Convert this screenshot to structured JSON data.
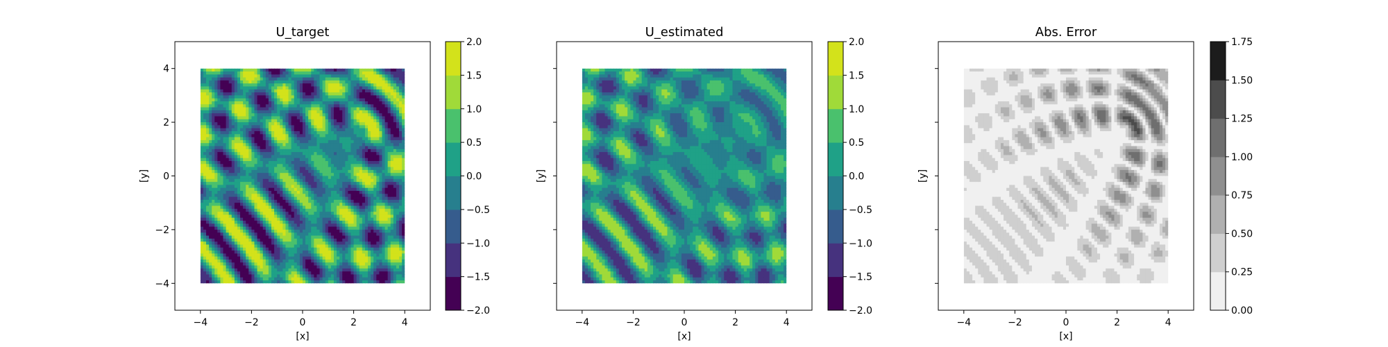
{
  "chart_data": [
    {
      "type": "heatmap",
      "title": "U_target",
      "xlabel": "[x]",
      "ylabel": "[y]",
      "xlim": [
        -5,
        5
      ],
      "ylim": [
        -5,
        5
      ],
      "data_extent": [
        -4,
        4
      ],
      "xticks": [
        -4,
        -2,
        0,
        2,
        4
      ],
      "yticks": [
        -4,
        -2,
        0,
        2,
        4
      ],
      "xtick_labels": [
        "−4",
        "−2",
        "0",
        "2",
        "4"
      ],
      "ytick_labels": [
        "−4",
        "−2",
        "0",
        "2",
        "4"
      ],
      "show_yticklabels": true,
      "colormap": "viridis",
      "colorbar": {
        "levels": [
          -2.0,
          -1.5,
          -1.0,
          -0.5,
          0.0,
          0.5,
          1.0,
          1.5,
          2.0
        ],
        "labels": [
          "−2.0",
          "−1.5",
          "−1.0",
          "−0.5",
          "0.0",
          "0.5",
          "1.0",
          "1.5",
          "2.0"
        ]
      },
      "field_amplitude": 1.0
    },
    {
      "type": "heatmap",
      "title": "U_estimated",
      "xlabel": "[x]",
      "ylabel": "[y]",
      "xlim": [
        -5,
        5
      ],
      "ylim": [
        -5,
        5
      ],
      "data_extent": [
        -4,
        4
      ],
      "xticks": [
        -4,
        -2,
        0,
        2,
        4
      ],
      "yticks": [
        -4,
        -2,
        0,
        2,
        4
      ],
      "xtick_labels": [
        "−4",
        "−2",
        "0",
        "2",
        "4"
      ],
      "ytick_labels": [
        "−4",
        "−2",
        "0",
        "2",
        "4"
      ],
      "show_yticklabels": false,
      "colormap": "viridis",
      "colorbar": {
        "levels": [
          -2.0,
          -1.5,
          -1.0,
          -0.5,
          0.0,
          0.5,
          1.0,
          1.5,
          2.0
        ],
        "labels": [
          "−2.0",
          "−1.5",
          "−1.0",
          "−0.5",
          "0.0",
          "0.5",
          "1.0",
          "1.5",
          "2.0"
        ]
      },
      "field_amplitude": 0.55
    },
    {
      "type": "heatmap",
      "title": "Abs. Error",
      "xlabel": "[x]",
      "ylabel": "[y]",
      "xlim": [
        -5,
        5
      ],
      "ylim": [
        -5,
        5
      ],
      "data_extent": [
        -4,
        4
      ],
      "xticks": [
        -4,
        -2,
        0,
        2,
        4
      ],
      "yticks": [
        -4,
        -2,
        0,
        2,
        4
      ],
      "xtick_labels": [
        "−4",
        "−2",
        "0",
        "2",
        "4"
      ],
      "ytick_labels": [
        "−4",
        "−2",
        "0",
        "2",
        "4"
      ],
      "show_yticklabels": false,
      "colormap": "gray_r",
      "colorbar": {
        "levels": [
          0.0,
          0.25,
          0.5,
          0.75,
          1.0,
          1.25,
          1.5,
          1.75
        ],
        "labels": [
          "0.00",
          "0.25",
          "0.50",
          "0.75",
          "1.00",
          "1.25",
          "1.50",
          "1.75"
        ]
      },
      "field_amplitude": 0.45
    }
  ]
}
